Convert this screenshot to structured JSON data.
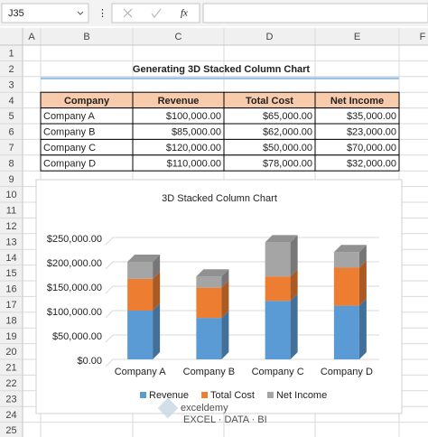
{
  "name_box": "J35",
  "formula_label": "fx",
  "columns": [
    "A",
    "B",
    "C",
    "D",
    "E",
    "F"
  ],
  "rows": [
    "1",
    "2",
    "3",
    "4",
    "5",
    "6",
    "7",
    "8",
    "9",
    "10",
    "11",
    "12",
    "13",
    "14",
    "15",
    "16",
    "17",
    "18",
    "19",
    "20",
    "21",
    "22",
    "23",
    "24",
    "25"
  ],
  "sheet_title": "Generating 3D Stacked Column Chart",
  "table": {
    "header": [
      "Company",
      "Revenue",
      "Total Cost",
      "Net Income"
    ],
    "rows": [
      [
        "Company A",
        "$100,000.00",
        "$65,000.00",
        "$35,000.00"
      ],
      [
        "Company B",
        "$85,000.00",
        "$62,000.00",
        "$23,000.00"
      ],
      [
        "Company C",
        "$120,000.00",
        "$50,000.00",
        "$70,000.00"
      ],
      [
        "Company D",
        "$110,000.00",
        "$78,000.00",
        "$32,000.00"
      ]
    ]
  },
  "chart_data": {
    "type": "bar",
    "stacked": true,
    "title": "3D Stacked Column Chart",
    "categories": [
      "Company A",
      "Company B",
      "Company C",
      "Company D"
    ],
    "series": [
      {
        "name": "Revenue",
        "color": "#5b9bd5",
        "values": [
          100000,
          85000,
          120000,
          110000
        ]
      },
      {
        "name": "Total Cost",
        "color": "#ed7d31",
        "values": [
          65000,
          62000,
          50000,
          78000
        ]
      },
      {
        "name": "Net Income",
        "color": "#a5a5a5",
        "values": [
          35000,
          23000,
          70000,
          32000
        ]
      }
    ],
    "ylim": [
      0,
      250000
    ],
    "yticks": [
      {
        "value": 0,
        "label": "$0.00"
      },
      {
        "value": 50000,
        "label": "$50,000.00"
      },
      {
        "value": 100000,
        "label": "$100,000.00"
      },
      {
        "value": 150000,
        "label": "$150,000.00"
      },
      {
        "value": 200000,
        "label": "$200,000.00"
      },
      {
        "value": 250000,
        "label": "$250,000.00"
      }
    ],
    "grid": true,
    "legend": "bottom"
  },
  "watermark": {
    "brand": "exceldemy",
    "tagline": "EXCEL · DATA · BI"
  }
}
